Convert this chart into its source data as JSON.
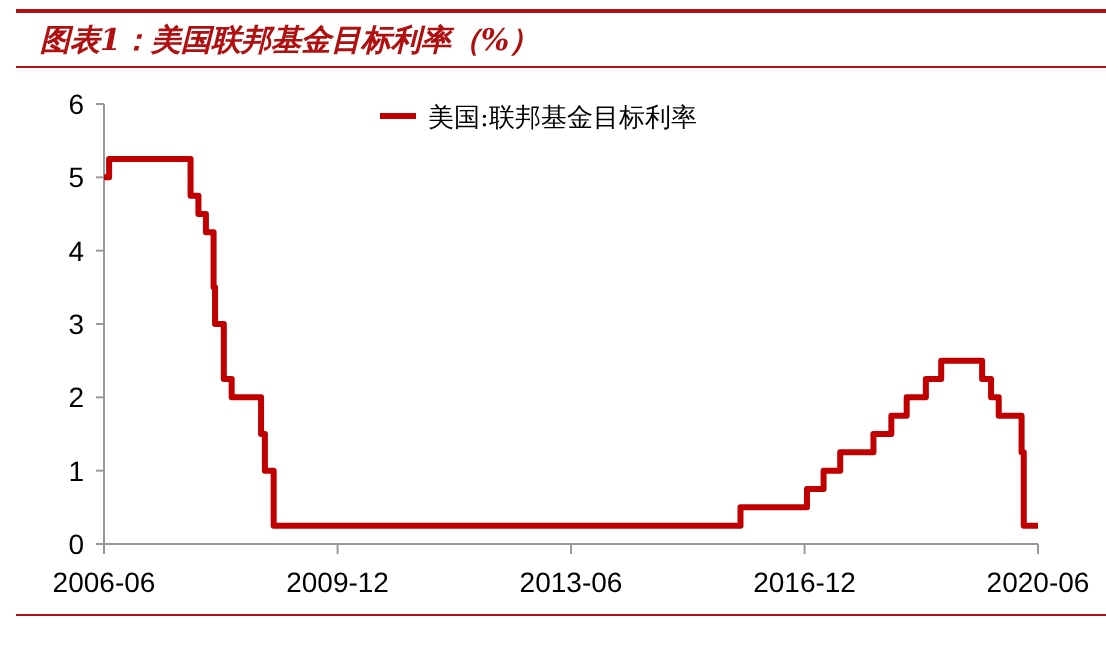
{
  "chart_data": {
    "type": "step",
    "title": "图表1：美国联邦基金目标利率（%）",
    "x": [
      "2006-06-01",
      "2006-06-29",
      "2007-09-18",
      "2007-10-31",
      "2007-12-11",
      "2008-01-22",
      "2008-01-30",
      "2008-03-18",
      "2008-04-30",
      "2008-10-08",
      "2008-10-29",
      "2008-12-16",
      "2015-12-16",
      "2016-12-14",
      "2017-03-15",
      "2017-06-14",
      "2017-12-13",
      "2018-03-21",
      "2018-06-13",
      "2018-09-26",
      "2018-12-19",
      "2019-07-31",
      "2019-09-18",
      "2019-10-30",
      "2020-03-03",
      "2020-03-15",
      "2020-06-01"
    ],
    "series": [
      {
        "name": "美国:联邦基金目标利率",
        "color": "#c00000",
        "values": [
          5.0,
          5.25,
          4.75,
          4.5,
          4.25,
          3.5,
          3.0,
          2.25,
          2.0,
          1.5,
          1.0,
          0.25,
          0.5,
          0.75,
          1.0,
          1.25,
          1.5,
          1.75,
          2.0,
          2.25,
          2.5,
          2.25,
          2.0,
          1.75,
          1.25,
          0.25,
          0.25
        ]
      }
    ],
    "xlim": [
      "2006-06",
      "2020-06"
    ],
    "xticks": [
      "2006-06",
      "2009-12",
      "2013-06",
      "2016-12",
      "2020-06"
    ],
    "ylim": [
      0,
      6
    ],
    "yticks": [
      0,
      1,
      2,
      3,
      4,
      5,
      6
    ],
    "grid": false,
    "legend": "top",
    "line_style": "solid",
    "marker": "none"
  }
}
